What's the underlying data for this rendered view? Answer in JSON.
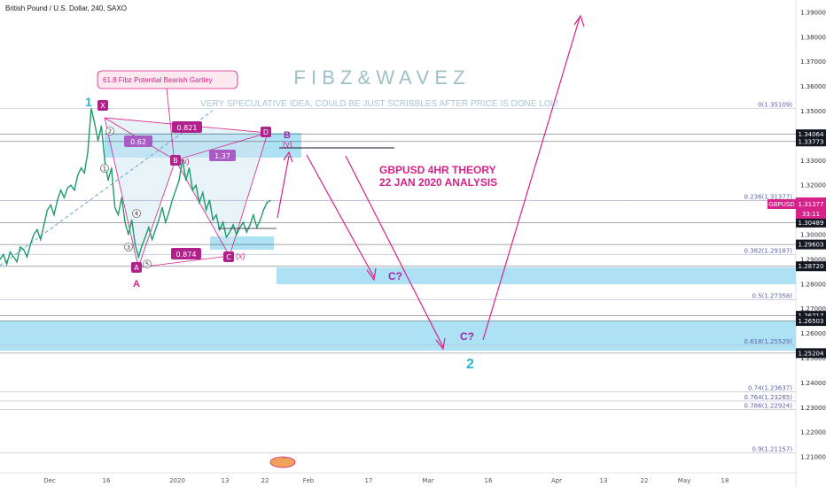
{
  "header": {
    "symbol_title": "British Pound / U.S. Dollar, 240, SAXO"
  },
  "branding": {
    "title": "F I B Z   &   W A V E Z",
    "subtitle": "VERY SPECULATIVE IDEA, COULD BE JUST SCRIBBLES AFTER PRICE IS DONE LOL!"
  },
  "annotations": {
    "gartley_label": "61.8 Fibz Potential Bearish Gartley",
    "theory_title": "GBPUSD 4HR THEORY",
    "theory_date": "22 JAN 2020 ANALYSIS",
    "wave_1": "1",
    "wave_2": "2",
    "wave_A": "A",
    "wave_B": "B",
    "wave_y": "(y)",
    "wave_x": "(x)",
    "wave_w": "(w)",
    "c_upper": "C?",
    "c_lower": "C?",
    "pattern_X": "X",
    "pattern_A": "A",
    "pattern_B": "B",
    "pattern_C": "C",
    "pattern_D": "D",
    "ratio_062": "0.62",
    "ratio_0821": "0.821",
    "ratio_137": "1.37",
    "ratio_0874": "0.874",
    "sub_1": "1",
    "sub_2": "2",
    "sub_3": "3",
    "sub_4": "4",
    "sub_5": "5",
    "ellipsis_label": "..."
  },
  "price_tag": {
    "symbol": "GBPUSD",
    "price": "1.31377",
    "countdown": "33:11"
  },
  "colors": {
    "accent_magenta": "#d6228a",
    "zone_blue": "#9fdcf2",
    "wave_cyan": "#27b5d8",
    "fib_purple": "#5b5fa8",
    "candle": "#1d9b6c"
  },
  "chart_data": {
    "type": "line",
    "title": "British Pound / U.S. Dollar, 240, SAXO",
    "ylim": [
      1.2,
      1.395
    ],
    "y_ticks": [
      "1.39000",
      "1.38000",
      "1.37000",
      "1.36000",
      "1.35000",
      "1.34000",
      "1.33000",
      "1.32000",
      "1.31000",
      "1.30000",
      "1.29000",
      "1.28000",
      "1.27000",
      "1.26000",
      "1.25000",
      "1.24000",
      "1.23000",
      "1.22000",
      "1.21000"
    ],
    "x_ticks": [
      "Dec",
      "16",
      "2020",
      "13",
      "22",
      "Feb",
      "17",
      "Mar",
      "16",
      "Apr",
      "13",
      "22",
      "May",
      "18"
    ],
    "series": [
      {
        "values": [
          1.29,
          1.292,
          1.288,
          1.293,
          1.291,
          1.289,
          1.295,
          1.294,
          1.291,
          1.296,
          1.3,
          1.302,
          1.298,
          1.304,
          1.31,
          1.312,
          1.308,
          1.314,
          1.318,
          1.315,
          1.319,
          1.32,
          1.318,
          1.324,
          1.327,
          1.325,
          1.3335,
          1.3511,
          1.345,
          1.338,
          1.344,
          1.33,
          1.322,
          1.327,
          1.311,
          1.308,
          1.315,
          1.305,
          1.3,
          1.306,
          1.296,
          1.291,
          1.2955,
          1.299,
          1.303,
          1.298,
          1.302,
          1.306,
          1.311,
          1.305,
          1.309,
          1.314,
          1.318,
          1.322,
          1.3305,
          1.322,
          1.327,
          1.318,
          1.32,
          1.313,
          1.317,
          1.31,
          1.314,
          1.306,
          1.308,
          1.302,
          1.305,
          1.299,
          1.301,
          1.304,
          1.3,
          1.303,
          1.305,
          1.301,
          1.304,
          1.308,
          1.303,
          1.306,
          1.31,
          1.313,
          1.3138
        ]
      }
    ],
    "levels": [
      {
        "price": 1.34064,
        "label": "1.34064",
        "tag_bg": "#131722"
      },
      {
        "price": 1.33773,
        "label": "1.33773",
        "tag_bg": "#131722"
      },
      {
        "price": 1.31377,
        "label": "1.31377",
        "tag_bg": "#d6228a"
      },
      {
        "price": 1.30489,
        "label": "1.30489",
        "tag_bg": "#131722"
      },
      {
        "price": 1.29603,
        "label": "1.29603",
        "tag_bg": "#131722"
      },
      {
        "price": 1.2872,
        "label": "1.28720",
        "tag_bg": "#131722"
      },
      {
        "price": 1.26717,
        "label": "1.26717",
        "tag_bg": "#131722"
      },
      {
        "price": 1.26503,
        "label": "1.26503",
        "tag_bg": "#131722"
      },
      {
        "price": 1.25204,
        "label": "1.25204",
        "tag_bg": "#131722"
      }
    ],
    "fib_levels": [
      {
        "price": 1.35109,
        "label": "0(1.35109)"
      },
      {
        "price": 1.31377,
        "label": "0.236(1.31377)"
      },
      {
        "price": 1.29187,
        "label": "0.382(1.29187)"
      },
      {
        "price": 1.27358,
        "label": "0.5(1.27358)"
      },
      {
        "price": 1.25529,
        "label": "0.618(1.25529)"
      },
      {
        "price": 1.23637,
        "label": "0.74(1.23637)"
      },
      {
        "price": 1.23265,
        "label": "0.764(1.23265)"
      },
      {
        "price": 1.22924,
        "label": "0.786(1.22924)"
      },
      {
        "price": 1.21157,
        "label": "0.9(1.21157)"
      }
    ],
    "grid": false
  }
}
